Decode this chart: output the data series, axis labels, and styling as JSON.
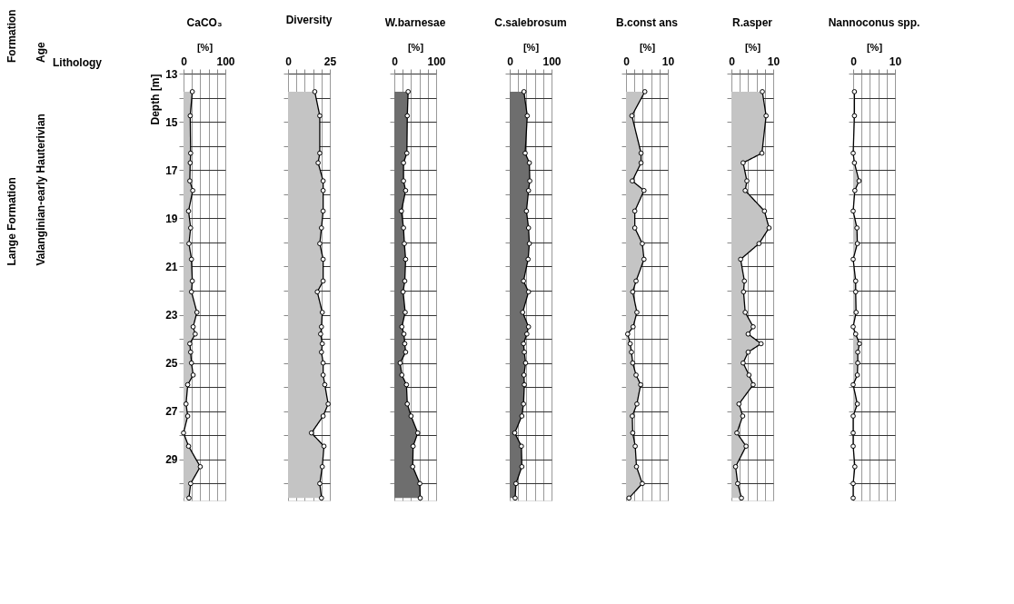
{
  "chart_data": [
    {
      "type": "other",
      "annotations": [
        "Formation",
        "Age",
        "Lithology",
        "Lange Formation",
        "Valanginian-early Hauterivian"
      ]
    },
    {
      "type": "area",
      "title": "CaCO₃",
      "xlabel": "[%]",
      "ylabel": "Depth [m]",
      "orientation": "horizontal",
      "grid": true,
      "marker": "circle",
      "x": [
        13.75,
        14.75,
        16.3,
        16.7,
        17.45,
        17.85,
        18.7,
        19.4,
        20.05,
        20.7,
        21.6,
        22.05,
        22.9,
        23.5,
        23.8,
        24.2,
        24.55,
        25.0,
        25.5,
        25.9,
        26.7,
        27.2,
        27.9,
        28.45,
        29.3,
        30.0,
        30.6
      ],
      "series": [
        {
          "color": "#c4c4c4",
          "values": [
            21,
            16,
            17,
            16,
            15,
            22,
            12,
            17,
            13,
            19,
            21,
            19,
            32,
            23,
            28,
            15,
            17,
            19,
            23,
            10,
            6,
            10,
            0,
            12,
            40,
            17,
            13
          ]
        }
      ],
      "xlim": [
        0,
        100
      ],
      "xticks": [
        0,
        {
          "value": 20,
          "label": null
        },
        {
          "value": 40,
          "label": null
        },
        {
          "value": 60,
          "label": null
        },
        {
          "value": 80,
          "label": null
        },
        100
      ],
      "ylim": [
        30.7,
        13
      ],
      "yticks": [
        13,
        {
          "value": 14,
          "label": null
        },
        15,
        {
          "value": 16,
          "label": null
        },
        17,
        {
          "value": 18,
          "label": null
        },
        19,
        {
          "value": 20,
          "label": null
        },
        21,
        {
          "value": 22,
          "label": null
        },
        23,
        {
          "value": 24,
          "label": null
        },
        25,
        {
          "value": 26,
          "label": null
        },
        27,
        {
          "value": 28,
          "label": null
        },
        29,
        {
          "value": 30,
          "label": null
        }
      ]
    },
    {
      "type": "area",
      "title": "Diversity",
      "orientation": "horizontal",
      "grid": true,
      "marker": "circle",
      "tick_labels": "x",
      "x": [
        13.75,
        14.75,
        16.3,
        16.7,
        17.45,
        17.85,
        18.7,
        19.4,
        20.05,
        20.7,
        21.6,
        22.05,
        22.9,
        23.5,
        23.8,
        24.2,
        24.55,
        25.0,
        25.5,
        25.9,
        26.7,
        27.2,
        27.9,
        28.45,
        29.3,
        30.0,
        30.6
      ],
      "series": [
        {
          "color": "#c4c4c4",
          "values": [
            16,
            19,
            19,
            18,
            21,
            21,
            21,
            20,
            19,
            21,
            21,
            17.5,
            20.5,
            20,
            19.5,
            20.5,
            20,
            21,
            21,
            22,
            24,
            21,
            14,
            21.5,
            20.5,
            19,
            20
          ]
        }
      ],
      "xlim": [
        0,
        25
      ],
      "xticks": [
        0,
        {
          "value": 5,
          "label": null
        },
        {
          "value": 10,
          "label": null
        },
        {
          "value": 15,
          "label": null
        },
        {
          "value": 20,
          "label": null
        },
        25
      ],
      "ylim": [
        30.7,
        13
      ],
      "yticks": [
        13,
        {
          "value": 14,
          "label": null
        },
        15,
        {
          "value": 16,
          "label": null
        },
        17,
        {
          "value": 18,
          "label": null
        },
        19,
        {
          "value": 20,
          "label": null
        },
        21,
        {
          "value": 22,
          "label": null
        },
        23,
        {
          "value": 24,
          "label": null
        },
        25,
        {
          "value": 26,
          "label": null
        },
        27,
        {
          "value": 28,
          "label": null
        },
        29,
        {
          "value": 30,
          "label": null
        }
      ]
    },
    {
      "type": "area",
      "title": "W.barnesae",
      "xlabel": "[%]",
      "orientation": "horizontal",
      "grid": true,
      "marker": "circle",
      "tick_labels": "x",
      "x": [
        13.75,
        14.75,
        16.3,
        16.7,
        17.45,
        17.85,
        18.7,
        19.4,
        20.05,
        20.7,
        21.6,
        22.05,
        22.9,
        23.5,
        23.8,
        24.2,
        24.55,
        25.0,
        25.5,
        25.9,
        26.7,
        27.2,
        27.9,
        28.45,
        29.3,
        30.0,
        30.6
      ],
      "series": [
        {
          "color": "#6e6e6e",
          "values": [
            33,
            31,
            30,
            22,
            22,
            27,
            17,
            22,
            24,
            27,
            25,
            21,
            26,
            18,
            23,
            25,
            27,
            14,
            18,
            29,
            31,
            40,
            56,
            45,
            44,
            61,
            62
          ]
        }
      ],
      "xlim": [
        0,
        100
      ],
      "xticks": [
        0,
        {
          "value": 20,
          "label": null
        },
        {
          "value": 40,
          "label": null
        },
        {
          "value": 60,
          "label": null
        },
        {
          "value": 80,
          "label": null
        },
        100
      ],
      "ylim": [
        30.7,
        13
      ],
      "yticks": [
        13,
        {
          "value": 14,
          "label": null
        },
        15,
        {
          "value": 16,
          "label": null
        },
        17,
        {
          "value": 18,
          "label": null
        },
        19,
        {
          "value": 20,
          "label": null
        },
        21,
        {
          "value": 22,
          "label": null
        },
        23,
        {
          "value": 24,
          "label": null
        },
        25,
        {
          "value": 26,
          "label": null
        },
        27,
        {
          "value": 28,
          "label": null
        },
        29,
        {
          "value": 30,
          "label": null
        }
      ]
    },
    {
      "type": "area",
      "title": "C.salebrosum",
      "xlabel": "[%]",
      "orientation": "horizontal",
      "grid": true,
      "marker": "circle",
      "tick_labels": "x",
      "x": [
        13.75,
        14.75,
        16.3,
        16.7,
        17.45,
        17.85,
        18.7,
        19.4,
        20.05,
        20.7,
        21.6,
        22.05,
        22.9,
        23.5,
        23.8,
        24.2,
        24.55,
        25.0,
        25.5,
        25.9,
        26.7,
        27.2,
        27.9,
        28.45,
        29.3,
        30.0,
        30.6
      ],
      "series": [
        {
          "color": "#6e6e6e",
          "values": [
            34,
            42,
            37,
            47,
            48,
            45,
            40,
            45,
            47,
            44,
            33,
            45,
            31,
            45,
            41,
            33,
            35,
            38,
            34,
            35,
            33,
            29,
            12,
            28,
            29,
            15,
            13
          ]
        }
      ],
      "xlim": [
        0,
        100
      ],
      "xticks": [
        0,
        {
          "value": 20,
          "label": null
        },
        {
          "value": 40,
          "label": null
        },
        {
          "value": 60,
          "label": null
        },
        {
          "value": 80,
          "label": null
        },
        100
      ],
      "ylim": [
        30.7,
        13
      ],
      "yticks": [
        13,
        {
          "value": 14,
          "label": null
        },
        15,
        {
          "value": 16,
          "label": null
        },
        17,
        {
          "value": 18,
          "label": null
        },
        19,
        {
          "value": 20,
          "label": null
        },
        21,
        {
          "value": 22,
          "label": null
        },
        23,
        {
          "value": 24,
          "label": null
        },
        25,
        {
          "value": 26,
          "label": null
        },
        27,
        {
          "value": 28,
          "label": null
        },
        29,
        {
          "value": 30,
          "label": null
        }
      ]
    },
    {
      "type": "area",
      "title": "B.const ans",
      "xlabel": "[%]",
      "orientation": "horizontal",
      "grid": true,
      "marker": "circle",
      "tick_labels": "x",
      "x": [
        13.75,
        14.75,
        16.3,
        16.7,
        17.45,
        17.85,
        18.7,
        19.4,
        20.05,
        20.7,
        21.6,
        22.05,
        22.9,
        23.5,
        23.8,
        24.2,
        24.55,
        25.0,
        25.5,
        25.9,
        26.7,
        27.2,
        27.9,
        28.45,
        29.3,
        30.0,
        30.6
      ],
      "series": [
        {
          "color": "#c4c4c4",
          "values": [
            4.5,
            1.4,
            3.6,
            3.6,
            1.5,
            4.3,
            2.1,
            2.1,
            3.9,
            4.3,
            2.4,
            1.6,
            2.6,
            1.7,
            0.4,
            1.0,
            1.3,
            1.6,
            2.4,
            3.5,
            2.6,
            1.5,
            1.6,
            2.2,
            2.5,
            3.9,
            0.7
          ]
        }
      ],
      "xlim": [
        0,
        10
      ],
      "xticks": [
        0,
        {
          "value": 2,
          "label": null
        },
        {
          "value": 4,
          "label": null
        },
        {
          "value": 6,
          "label": null
        },
        {
          "value": 8,
          "label": null
        },
        10
      ],
      "ylim": [
        30.7,
        13
      ],
      "yticks": [
        13,
        {
          "value": 14,
          "label": null
        },
        15,
        {
          "value": 16,
          "label": null
        },
        17,
        {
          "value": 18,
          "label": null
        },
        19,
        {
          "value": 20,
          "label": null
        },
        21,
        {
          "value": 22,
          "label": null
        },
        23,
        {
          "value": 24,
          "label": null
        },
        25,
        {
          "value": 26,
          "label": null
        },
        27,
        {
          "value": 28,
          "label": null
        },
        29,
        {
          "value": 30,
          "label": null
        }
      ]
    },
    {
      "type": "area",
      "title": "R.asper",
      "xlabel": "[%]",
      "orientation": "horizontal",
      "grid": true,
      "marker": "circle",
      "tick_labels": "x",
      "x": [
        13.75,
        14.75,
        16.3,
        16.7,
        17.45,
        17.85,
        18.7,
        19.4,
        20.05,
        20.7,
        21.6,
        22.05,
        22.9,
        23.5,
        23.8,
        24.2,
        24.55,
        25.0,
        25.5,
        25.9,
        26.7,
        27.2,
        27.9,
        28.45,
        29.3,
        30.0,
        30.6
      ],
      "series": [
        {
          "color": "#c4c4c4",
          "values": [
            7.4,
            8.3,
            7.3,
            2.8,
            3.7,
            3.3,
            7.9,
            9.0,
            6.6,
            2.2,
            3.1,
            2.9,
            3.3,
            5.2,
            4.0,
            7.1,
            4.0,
            2.8,
            4.2,
            5.2,
            1.8,
            2.7,
            1.3,
            3.5,
            1.0,
            1.5,
            2.4
          ]
        }
      ],
      "xlim": [
        0,
        10
      ],
      "xticks": [
        0,
        {
          "value": 2,
          "label": null
        },
        {
          "value": 4,
          "label": null
        },
        {
          "value": 6,
          "label": null
        },
        {
          "value": 8,
          "label": null
        },
        10
      ],
      "ylim": [
        30.7,
        13
      ],
      "yticks": [
        13,
        {
          "value": 14,
          "label": null
        },
        15,
        {
          "value": 16,
          "label": null
        },
        17,
        {
          "value": 18,
          "label": null
        },
        19,
        {
          "value": 20,
          "label": null
        },
        21,
        {
          "value": 22,
          "label": null
        },
        23,
        {
          "value": 24,
          "label": null
        },
        25,
        {
          "value": 26,
          "label": null
        },
        27,
        {
          "value": 28,
          "label": null
        },
        29,
        {
          "value": 30,
          "label": null
        }
      ]
    },
    {
      "type": "area",
      "title": "Nannoconus spp.",
      "xlabel": "[%]",
      "orientation": "horizontal",
      "grid": true,
      "marker": "circle",
      "tick_labels": "x",
      "x": [
        13.75,
        14.75,
        16.3,
        16.7,
        17.45,
        17.85,
        18.7,
        19.4,
        20.05,
        20.7,
        21.6,
        22.05,
        22.9,
        23.5,
        23.8,
        24.2,
        24.55,
        25.0,
        25.5,
        25.9,
        26.7,
        27.2,
        27.9,
        28.45,
        29.3,
        30.0,
        30.6
      ],
      "series": [
        {
          "color": "#c4c4c4",
          "values": [
            0.3,
            0.3,
            0,
            0.3,
            1.4,
            0.4,
            0,
            0.9,
            1.0,
            0,
            0.6,
            0.6,
            0.7,
            0,
            0.6,
            1.5,
            1.1,
            1.1,
            1.0,
            0,
            1.0,
            0,
            0,
            0,
            0.4,
            0,
            0
          ]
        }
      ],
      "xlim": [
        0,
        10
      ],
      "xticks": [
        0,
        {
          "value": 2,
          "label": null
        },
        {
          "value": 4,
          "label": null
        },
        {
          "value": 6,
          "label": null
        },
        {
          "value": 8,
          "label": null
        },
        10
      ],
      "ylim": [
        30.7,
        13
      ],
      "yticks": [
        13,
        {
          "value": 14,
          "label": null
        },
        15,
        {
          "value": 16,
          "label": null
        },
        17,
        {
          "value": 18,
          "label": null
        },
        19,
        {
          "value": 20,
          "label": null
        },
        21,
        {
          "value": 22,
          "label": null
        },
        23,
        {
          "value": 24,
          "label": null
        },
        25,
        {
          "value": 26,
          "label": null
        },
        27,
        {
          "value": 28,
          "label": null
        },
        29,
        {
          "value": 30,
          "label": null
        }
      ]
    }
  ]
}
